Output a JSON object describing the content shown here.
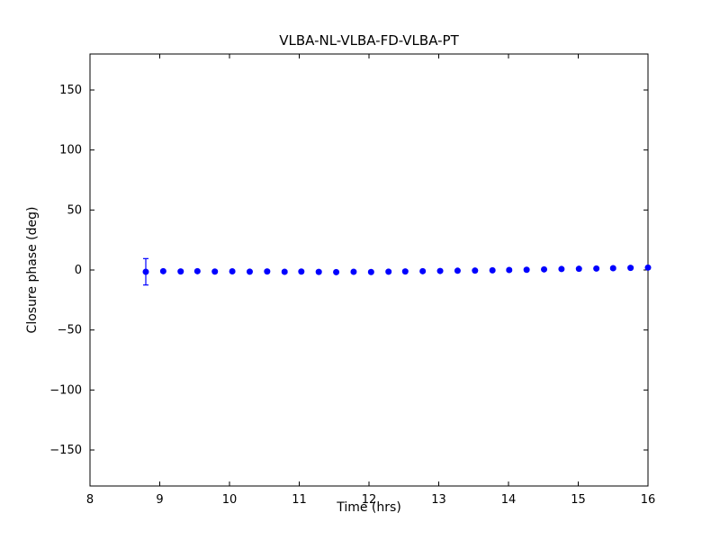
{
  "figure": {
    "title": "VLBA-NL-VLBA-FD-VLBA-PT",
    "xlabel": "Time (hrs)",
    "ylabel": "Closure phase (deg)",
    "background": "#ffffff",
    "axis_color": "#000000"
  },
  "chart_data": {
    "type": "scatter",
    "title": "VLBA-NL-VLBA-FD-VLBA-PT",
    "xlabel": "Time (hrs)",
    "ylabel": "Closure phase (deg)",
    "xlim": [
      8,
      16
    ],
    "ylim": [
      -180,
      180
    ],
    "xticks": [
      8,
      9,
      10,
      11,
      12,
      13,
      14,
      15,
      16
    ],
    "yticks": [
      -150,
      -100,
      -50,
      0,
      50,
      100,
      150
    ],
    "grid": false,
    "legend": "none",
    "marker": "circle",
    "marker_color": "#0000ff",
    "series": [
      {
        "name": "closure-phase",
        "x": [
          8.8,
          9.05,
          9.3,
          9.54,
          9.79,
          10.04,
          10.29,
          10.54,
          10.79,
          11.03,
          11.28,
          11.53,
          11.78,
          12.03,
          12.28,
          12.52,
          12.77,
          13.02,
          13.27,
          13.52,
          13.77,
          14.01,
          14.26,
          14.51,
          14.76,
          15.01,
          15.26,
          15.5,
          15.75,
          16.0
        ],
        "y": [
          -1.5,
          -1.0,
          -1.2,
          -1.0,
          -1.3,
          -1.1,
          -1.4,
          -1.2,
          -1.5,
          -1.3,
          -1.6,
          -1.8,
          -1.5,
          -1.7,
          -1.4,
          -1.2,
          -1.0,
          -0.8,
          -0.6,
          -0.5,
          -0.3,
          0.0,
          0.2,
          0.5,
          0.8,
          1.0,
          1.2,
          1.5,
          1.8,
          2.0
        ],
        "yerr": [
          11,
          1,
          1,
          1,
          1,
          1,
          1,
          1,
          1,
          1,
          1,
          1,
          1,
          1,
          1,
          1,
          1,
          1,
          1,
          1,
          1,
          1,
          1,
          1,
          1,
          1,
          1,
          1,
          1,
          1
        ]
      }
    ]
  }
}
